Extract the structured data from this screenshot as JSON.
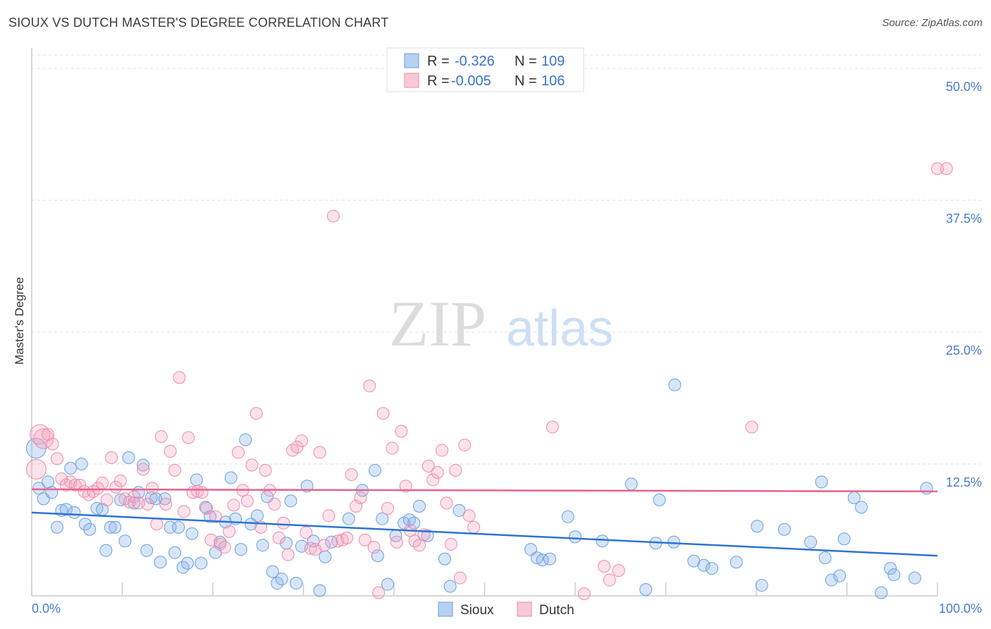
{
  "title": "SIOUX VS DUTCH MASTER'S DEGREE CORRELATION CHART",
  "source": "Source: ZipAtlas.com",
  "watermark": {
    "zip": "ZIP",
    "atlas": "atlas"
  },
  "legend_stats": [
    {
      "series": "Sioux",
      "r_label": "R =",
      "r_value": "-0.326",
      "n_label": "N =",
      "n_value": "109"
    },
    {
      "series": "Dutch",
      "r_label": "R =",
      "r_value": "-0.005",
      "n_label": "N =",
      "n_value": "106"
    }
  ],
  "chart_data": {
    "type": "scatter",
    "title": "SIOUX VS DUTCH MASTER'S DEGREE CORRELATION CHART",
    "xlabel": "",
    "ylabel": "Master's Degree",
    "xlim": [
      0,
      100
    ],
    "ylim": [
      0,
      50
    ],
    "x_tick_labels": [
      "0.0%",
      "100.0%"
    ],
    "y_ticks": [
      12.5,
      25.0,
      37.5,
      50.0
    ],
    "y_tick_labels": [
      "12.5%",
      "25.0%",
      "37.5%",
      "50.0%"
    ],
    "grid": true,
    "legend_position": "bottom",
    "colors": {
      "Sioux": "#6a9fe0",
      "Dutch": "#f08aaa",
      "Sioux_line": "#2f73cf",
      "Dutch_line": "#e8628a"
    },
    "series": [
      {
        "name": "Sioux",
        "trend": {
          "x": [
            0,
            100
          ],
          "y": [
            7.9,
            3.8
          ]
        },
        "points": [
          [
            0.5,
            14
          ],
          [
            0.8,
            10.2
          ],
          [
            1.3,
            9.2
          ],
          [
            1.8,
            10.8
          ],
          [
            2.2,
            9.8
          ],
          [
            2.8,
            6.5
          ],
          [
            3.3,
            8.1
          ],
          [
            3.8,
            8.2
          ],
          [
            4.3,
            12.1
          ],
          [
            4.7,
            7.9
          ],
          [
            5.5,
            12.5
          ],
          [
            5.9,
            6.8
          ],
          [
            6.4,
            6.3
          ],
          [
            7.2,
            8.3
          ],
          [
            7.8,
            8.2
          ],
          [
            8.2,
            4.3
          ],
          [
            8.7,
            6.5
          ],
          [
            9.2,
            6.5
          ],
          [
            9.8,
            9.1
          ],
          [
            10.3,
            5.2
          ],
          [
            10.7,
            13.1
          ],
          [
            11.3,
            8.8
          ],
          [
            11.8,
            9.8
          ],
          [
            12.3,
            12.4
          ],
          [
            12.7,
            4.3
          ],
          [
            13.2,
            9.3
          ],
          [
            13.7,
            9.2
          ],
          [
            14.2,
            3.2
          ],
          [
            14.7,
            9.2
          ],
          [
            15.3,
            6.5
          ],
          [
            15.8,
            4.1
          ],
          [
            16.2,
            6.5
          ],
          [
            16.7,
            2.7
          ],
          [
            17.2,
            3.1
          ],
          [
            17.7,
            5.9
          ],
          [
            18.2,
            11.0
          ],
          [
            18.7,
            3.1
          ],
          [
            19.2,
            8.4
          ],
          [
            19.7,
            7.5
          ],
          [
            20.3,
            4.1
          ],
          [
            20.8,
            5.1
          ],
          [
            21.4,
            7.0
          ],
          [
            22.0,
            11.2
          ],
          [
            22.5,
            7.3
          ],
          [
            23.1,
            4.4
          ],
          [
            23.6,
            14.8
          ],
          [
            24.2,
            6.8
          ],
          [
            24.9,
            7.6
          ],
          [
            25.5,
            4.8
          ],
          [
            26.0,
            9.4
          ],
          [
            26.6,
            2.3
          ],
          [
            27.1,
            1.2
          ],
          [
            27.6,
            1.6
          ],
          [
            28.1,
            5.0
          ],
          [
            28.6,
            9.0
          ],
          [
            29.2,
            1.2
          ],
          [
            29.8,
            4.7
          ],
          [
            30.4,
            10.4
          ],
          [
            31.1,
            5.2
          ],
          [
            31.8,
            0.5
          ],
          [
            32.4,
            3.7
          ],
          [
            33.1,
            5.1
          ],
          [
            35.0,
            7.3
          ],
          [
            36.5,
            10.0
          ],
          [
            37.9,
            11.9
          ],
          [
            38.2,
            3.8
          ],
          [
            38.7,
            7.3
          ],
          [
            39.3,
            1.1
          ],
          [
            40.2,
            5.7
          ],
          [
            41.1,
            6.9
          ],
          [
            41.7,
            7.2
          ],
          [
            42.2,
            6.9
          ],
          [
            42.8,
            8.5
          ],
          [
            43.7,
            5.7
          ],
          [
            45.6,
            3.5
          ],
          [
            46.2,
            0.9
          ],
          [
            47.2,
            8.1
          ],
          [
            55.1,
            4.4
          ],
          [
            55.8,
            3.6
          ],
          [
            56.4,
            3.4
          ],
          [
            57.2,
            3.5
          ],
          [
            59.2,
            7.5
          ],
          [
            60.0,
            5.6
          ],
          [
            63.0,
            5.2
          ],
          [
            66.2,
            10.6
          ],
          [
            67.8,
            0.6
          ],
          [
            68.9,
            5.0
          ],
          [
            69.3,
            9.1
          ],
          [
            70.9,
            5.1
          ],
          [
            71.0,
            20.0
          ],
          [
            73.1,
            3.3
          ],
          [
            74.2,
            2.9
          ],
          [
            75.1,
            2.6
          ],
          [
            77.8,
            3.2
          ],
          [
            80.1,
            6.6
          ],
          [
            80.6,
            1.0
          ],
          [
            83.1,
            6.3
          ],
          [
            86.0,
            5.1
          ],
          [
            87.2,
            10.8
          ],
          [
            87.6,
            3.6
          ],
          [
            88.3,
            1.5
          ],
          [
            89.2,
            1.9
          ],
          [
            89.7,
            5.4
          ],
          [
            90.8,
            9.3
          ],
          [
            91.6,
            8.4
          ],
          [
            93.8,
            0.3
          ],
          [
            94.8,
            2.6
          ],
          [
            95.2,
            2.0
          ],
          [
            97.5,
            1.7
          ],
          [
            98.8,
            10.2
          ]
        ]
      },
      {
        "name": "Dutch",
        "trend": {
          "x": [
            0,
            100
          ],
          "y": [
            10.1,
            9.9
          ]
        },
        "points": [
          [
            0.5,
            12.0
          ],
          [
            0.9,
            15.3
          ],
          [
            1.3,
            14.9
          ],
          [
            1.8,
            15.3
          ],
          [
            2.3,
            14.4
          ],
          [
            2.8,
            13.0
          ],
          [
            3.3,
            11.1
          ],
          [
            3.8,
            10.5
          ],
          [
            4.3,
            10.8
          ],
          [
            4.8,
            10.5
          ],
          [
            5.3,
            10.5
          ],
          [
            5.8,
            9.9
          ],
          [
            6.3,
            9.6
          ],
          [
            6.8,
            9.9
          ],
          [
            7.3,
            10.2
          ],
          [
            7.8,
            10.7
          ],
          [
            8.3,
            9.1
          ],
          [
            8.8,
            13.1
          ],
          [
            9.3,
            10.3
          ],
          [
            9.8,
            10.9
          ],
          [
            10.3,
            9.2
          ],
          [
            10.8,
            8.9
          ],
          [
            11.3,
            9.4
          ],
          [
            11.8,
            8.8
          ],
          [
            12.3,
            12.0
          ],
          [
            12.8,
            8.7
          ],
          [
            13.3,
            10.2
          ],
          [
            13.8,
            6.8
          ],
          [
            14.3,
            15.1
          ],
          [
            14.8,
            8.7
          ],
          [
            15.3,
            13.7
          ],
          [
            15.8,
            11.9
          ],
          [
            16.3,
            20.7
          ],
          [
            16.8,
            8.0
          ],
          [
            17.3,
            15.0
          ],
          [
            17.8,
            9.8
          ],
          [
            18.3,
            9.9
          ],
          [
            18.8,
            9.8
          ],
          [
            19.3,
            8.3
          ],
          [
            19.8,
            5.3
          ],
          [
            20.3,
            7.5
          ],
          [
            20.8,
            4.9
          ],
          [
            21.3,
            4.6
          ],
          [
            21.8,
            6.1
          ],
          [
            22.3,
            8.6
          ],
          [
            22.8,
            13.6
          ],
          [
            23.3,
            10.0
          ],
          [
            23.8,
            9.0
          ],
          [
            24.3,
            12.4
          ],
          [
            24.8,
            17.3
          ],
          [
            25.3,
            6.5
          ],
          [
            25.8,
            11.9
          ],
          [
            26.3,
            10.0
          ],
          [
            26.8,
            8.7
          ],
          [
            27.3,
            5.5
          ],
          [
            27.8,
            6.9
          ],
          [
            28.3,
            3.9
          ],
          [
            28.8,
            13.8
          ],
          [
            29.3,
            14.1
          ],
          [
            29.8,
            14.7
          ],
          [
            30.3,
            6.0
          ],
          [
            30.8,
            4.5
          ],
          [
            31.3,
            4.4
          ],
          [
            31.8,
            13.6
          ],
          [
            32.3,
            4.8
          ],
          [
            32.8,
            7.6
          ],
          [
            33.3,
            36.0
          ],
          [
            33.8,
            5.2
          ],
          [
            34.3,
            5.3
          ],
          [
            34.8,
            5.5
          ],
          [
            35.3,
            11.5
          ],
          [
            35.8,
            8.5
          ],
          [
            36.3,
            9.3
          ],
          [
            36.8,
            5.3
          ],
          [
            37.3,
            19.9
          ],
          [
            37.8,
            4.6
          ],
          [
            38.3,
            0.3
          ],
          [
            38.8,
            17.3
          ],
          [
            39.3,
            8.3
          ],
          [
            39.8,
            14.0
          ],
          [
            40.3,
            5.1
          ],
          [
            40.8,
            15.6
          ],
          [
            41.3,
            10.4
          ],
          [
            41.8,
            6.2
          ],
          [
            42.3,
            5.2
          ],
          [
            42.8,
            4.8
          ],
          [
            43.3,
            5.8
          ],
          [
            43.8,
            12.3
          ],
          [
            44.3,
            11.0
          ],
          [
            44.8,
            11.7
          ],
          [
            45.3,
            13.8
          ],
          [
            45.8,
            8.8
          ],
          [
            46.3,
            4.9
          ],
          [
            46.8,
            11.9
          ],
          [
            47.3,
            1.7
          ],
          [
            47.8,
            14.3
          ],
          [
            48.3,
            7.6
          ],
          [
            48.8,
            6.5
          ],
          [
            57.5,
            16.0
          ],
          [
            61.0,
            0.2
          ],
          [
            63.2,
            2.8
          ],
          [
            63.8,
            1.5
          ],
          [
            64.8,
            2.4
          ],
          [
            79.5,
            16.0
          ],
          [
            100,
            40.5
          ],
          [
            101,
            40.5
          ]
        ]
      }
    ]
  },
  "bottom_legend": [
    {
      "label": "Sioux"
    },
    {
      "label": "Dutch"
    }
  ]
}
